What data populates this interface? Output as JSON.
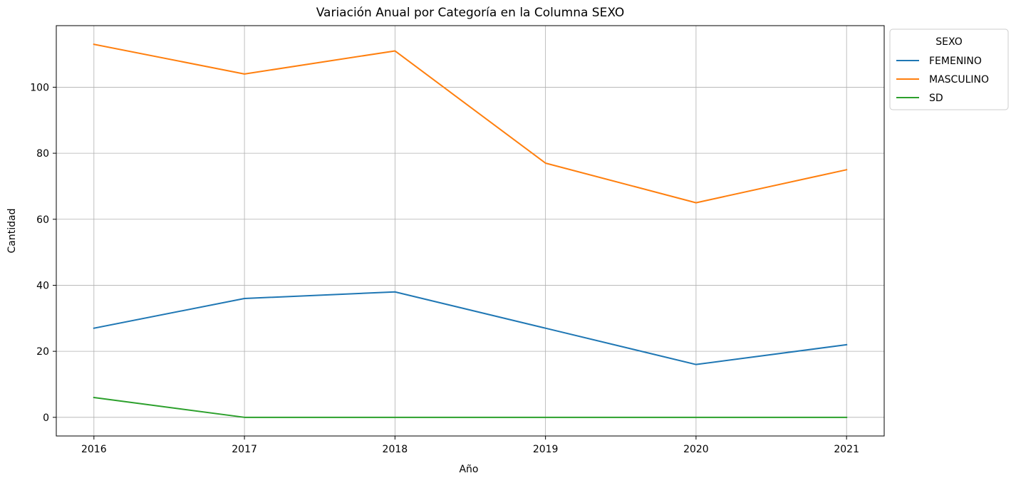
{
  "chart_data": {
    "type": "line",
    "title": "Variación Anual por Categoría en la Columna SEXO",
    "xlabel": "Año",
    "ylabel": "Cantidad",
    "x": [
      2016,
      2017,
      2018,
      2019,
      2020,
      2021
    ],
    "x_ticks": [
      "2016",
      "2017",
      "2018",
      "2019",
      "2020",
      "2021"
    ],
    "y_ticks": [
      0,
      20,
      40,
      60,
      80,
      100
    ],
    "xlim": [
      2015.75,
      2021.25
    ],
    "ylim": [
      -5.65,
      118.65
    ],
    "grid": true,
    "legend": {
      "title": "SEXO",
      "placement": "outside upper-right"
    },
    "series": [
      {
        "name": "FEMENINO",
        "color": "#1f77b4",
        "values": [
          27,
          36,
          38,
          27,
          16,
          22
        ]
      },
      {
        "name": "MASCULINO",
        "color": "#ff7f0e",
        "values": [
          113,
          104,
          111,
          77,
          65,
          75
        ]
      },
      {
        "name": "SD",
        "color": "#2ca02c",
        "values": [
          6,
          0,
          0,
          0,
          0,
          0
        ]
      }
    ]
  }
}
